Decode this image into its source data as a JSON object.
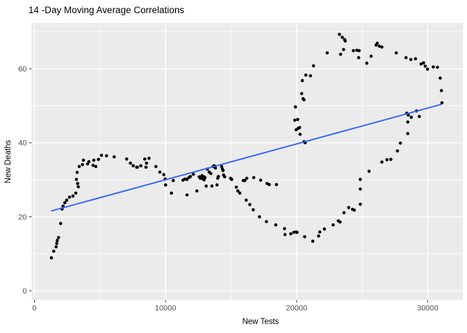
{
  "chart": {
    "title": "14 -Day Moving Average Correlations",
    "xlabel": "New Tests",
    "ylabel": "New Deaths"
  },
  "colors": {
    "panel_bg": "#EBEBEB",
    "grid": "#FFFFFF",
    "point": "#000000",
    "trend": "#3366FF",
    "tick_label": "#4D4D4D",
    "tick_mark": "#333333",
    "title": "#000000"
  },
  "chart_data": {
    "type": "scatter",
    "title": "14 -Day Moving Average Correlations",
    "xlabel": "New Tests",
    "ylabel": "New Deaths",
    "xlim": [
      -212,
      32680
    ],
    "ylim": [
      -2.5,
      72.4
    ],
    "x_ticks": [
      0,
      10000,
      20000,
      30000
    ],
    "x_minor_ticks": [
      5000,
      15000,
      25000
    ],
    "y_ticks": [
      0,
      20,
      40,
      60
    ],
    "y_minor_ticks": [
      10,
      30,
      50,
      70
    ],
    "grid": true,
    "legend": "none",
    "trend_line": {
      "type": "linear",
      "x1": 1315,
      "y1": 21.6,
      "x2": 31060,
      "y2": 50.4
    },
    "points": [
      [
        1299,
        8.9
      ],
      [
        1474,
        10.7
      ],
      [
        1654,
        11.9
      ],
      [
        1707,
        12.8
      ],
      [
        1739,
        13.6
      ],
      [
        1845,
        14.4
      ],
      [
        2004,
        18.2
      ],
      [
        2110,
        22.1
      ],
      [
        2185,
        22.9
      ],
      [
        2322,
        23.8
      ],
      [
        2466,
        24.5
      ],
      [
        2678,
        25.3
      ],
      [
        2943,
        25.6
      ],
      [
        3155,
        26.4
      ],
      [
        3208,
        30.1
      ],
      [
        3261,
        32.0
      ],
      [
        3298,
        29.0
      ],
      [
        3351,
        28.1
      ],
      [
        3420,
        33.6
      ],
      [
        3669,
        34.1
      ],
      [
        3740,
        35.3
      ],
      [
        4056,
        34.3
      ],
      [
        4162,
        34.9
      ],
      [
        4480,
        33.9
      ],
      [
        4533,
        35.3
      ],
      [
        4692,
        33.6
      ],
      [
        4888,
        35.5
      ],
      [
        5117,
        36.6
      ],
      [
        5504,
        36.5
      ],
      [
        6087,
        36.2
      ],
      [
        7041,
        35.6
      ],
      [
        7327,
        34.5
      ],
      [
        7539,
        33.8
      ],
      [
        7804,
        33.4
      ],
      [
        7857,
        33.4
      ],
      [
        8123,
        33.8
      ],
      [
        8420,
        35.6
      ],
      [
        8510,
        33.4
      ],
      [
        8548,
        34.5
      ],
      [
        8739,
        35.8
      ],
      [
        9270,
        33.6
      ],
      [
        9570,
        32.1
      ],
      [
        9872,
        31.4
      ],
      [
        9978,
        30.2
      ],
      [
        10010,
        28.6
      ],
      [
        10455,
        26.4
      ],
      [
        10593,
        29.8
      ],
      [
        11335,
        29.9
      ],
      [
        11478,
        30.2
      ],
      [
        11637,
        30.1
      ],
      [
        11640,
        25.9
      ],
      [
        11780,
        30.6
      ],
      [
        11903,
        30.9
      ],
      [
        12131,
        31.5
      ],
      [
        12396,
        27.0
      ],
      [
        12576,
        30.8
      ],
      [
        12661,
        30.4
      ],
      [
        12788,
        31.1
      ],
      [
        12841,
        30.3
      ],
      [
        12926,
        30.8
      ],
      [
        12947,
        30.0
      ],
      [
        13016,
        30.6
      ],
      [
        13106,
        28.3
      ],
      [
        13191,
        32.9
      ],
      [
        13334,
        32.1
      ],
      [
        13457,
        31.7
      ],
      [
        13546,
        28.3
      ],
      [
        13636,
        33.6
      ],
      [
        13721,
        33.8
      ],
      [
        13811,
        33.2
      ],
      [
        13933,
        28.6
      ],
      [
        13986,
        30.4
      ],
      [
        14039,
        30.9
      ],
      [
        14288,
        33.6
      ],
      [
        14341,
        32.9
      ],
      [
        14394,
        32.5
      ],
      [
        14431,
        31.3
      ],
      [
        14516,
        30.8
      ],
      [
        14962,
        30.4
      ],
      [
        15047,
        30.1
      ],
      [
        15401,
        28.0
      ],
      [
        15523,
        27.0
      ],
      [
        15666,
        26.4
      ],
      [
        15933,
        29.8
      ],
      [
        16053,
        29.8
      ],
      [
        16159,
        24.5
      ],
      [
        16198,
        30.4
      ],
      [
        16426,
        23.3
      ],
      [
        16691,
        21.9
      ],
      [
        16728,
        30.6
      ],
      [
        17169,
        20.0
      ],
      [
        17258,
        29.9
      ],
      [
        17699,
        18.7
      ],
      [
        17751,
        29.0
      ],
      [
        17910,
        28.7
      ],
      [
        18409,
        17.8
      ],
      [
        18461,
        28.7
      ],
      [
        19077,
        16.8
      ],
      [
        19114,
        15.2
      ],
      [
        19554,
        15.4
      ],
      [
        19787,
        15.8
      ],
      [
        19962,
        15.9
      ],
      [
        20031,
        15.8
      ],
      [
        20614,
        14.6
      ],
      [
        21235,
        13.4
      ],
      [
        21674,
        14.8
      ],
      [
        21764,
        15.9
      ],
      [
        22119,
        16.7
      ],
      [
        22787,
        17.8
      ],
      [
        23179,
        18.9
      ],
      [
        23317,
        18.6
      ],
      [
        23617,
        21.1
      ],
      [
        23972,
        22.5
      ],
      [
        24269,
        22.0
      ],
      [
        24402,
        21.8
      ],
      [
        24861,
        23.4
      ],
      [
        24861,
        27.5
      ],
      [
        24861,
        30.1
      ],
      [
        25531,
        32.3
      ],
      [
        26502,
        34.8
      ],
      [
        26894,
        35.4
      ],
      [
        27190,
        35.5
      ],
      [
        27690,
        37.8
      ],
      [
        27918,
        39.9
      ],
      [
        28483,
        42.5
      ],
      [
        28395,
        48.0
      ],
      [
        28483,
        45.6
      ],
      [
        28515,
        47.5
      ],
      [
        28748,
        46.9
      ],
      [
        29152,
        48.6
      ],
      [
        29364,
        47.1
      ],
      [
        19856,
        46.1
      ],
      [
        19909,
        49.7
      ],
      [
        19962,
        43.5
      ],
      [
        20086,
        46.3
      ],
      [
        20123,
        43.9
      ],
      [
        20229,
        44.1
      ],
      [
        20267,
        42.3
      ],
      [
        20389,
        53.3
      ],
      [
        20442,
        56.8
      ],
      [
        20495,
        51.9
      ],
      [
        20565,
        51.6
      ],
      [
        20565,
        40.3
      ],
      [
        20660,
        40.0
      ],
      [
        20707,
        58.3
      ],
      [
        21062,
        58.1
      ],
      [
        21290,
        60.8
      ],
      [
        22334,
        64.3
      ],
      [
        23270,
        69.3
      ],
      [
        23358,
        63.9
      ],
      [
        23482,
        68.5
      ],
      [
        23586,
        65.2
      ],
      [
        23662,
        67.9
      ],
      [
        23713,
        67.5
      ],
      [
        24331,
        64.9
      ],
      [
        24596,
        65.0
      ],
      [
        24772,
        64.9
      ],
      [
        24736,
        63.0
      ],
      [
        25355,
        61.5
      ],
      [
        25690,
        63.4
      ],
      [
        26062,
        66.4
      ],
      [
        26152,
        66.9
      ],
      [
        26311,
        66.1
      ],
      [
        26502,
        65.9
      ],
      [
        27600,
        64.3
      ],
      [
        28342,
        63.0
      ],
      [
        28713,
        62.5
      ],
      [
        29068,
        62.7
      ],
      [
        29492,
        61.3
      ],
      [
        29683,
        61.6
      ],
      [
        29810,
        60.7
      ],
      [
        29985,
        59.9
      ],
      [
        30427,
        60.5
      ],
      [
        30745,
        60.4
      ],
      [
        30957,
        57.5
      ],
      [
        31047,
        54.1
      ],
      [
        31084,
        50.8
      ]
    ]
  }
}
